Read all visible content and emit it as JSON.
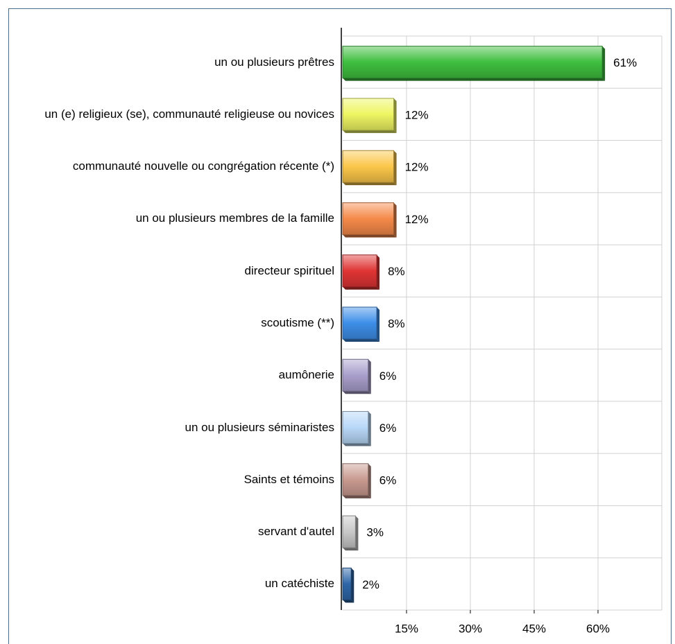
{
  "chart_data": {
    "type": "bar",
    "orientation": "horizontal",
    "categories": [
      "un ou plusieurs prêtres",
      "un (e) religieux (se), communauté religieuse ou novices",
      "communauté nouvelle ou congrégation récente (*)",
      "un ou plusieurs membres de la famille",
      "directeur spirituel",
      "scoutisme (**)",
      "aumônerie",
      "un ou plusieurs séminaristes",
      "Saints et témoins",
      "servant d'autel",
      "un catéchiste"
    ],
    "values": [
      61,
      12,
      12,
      12,
      8,
      8,
      6,
      6,
      6,
      3,
      2
    ],
    "value_labels": [
      "61%",
      "12%",
      "12%",
      "12%",
      "8%",
      "8%",
      "6%",
      "6%",
      "6%",
      "3%",
      "2%"
    ],
    "colors": [
      "#3fbf3f",
      "#eef562",
      "#fbc74a",
      "#f58a4a",
      "#e03434",
      "#3d8ee8",
      "#a99fcc",
      "#b8d8f8",
      "#c99a90",
      "#c8c8c8",
      "#2e66a8"
    ],
    "xlim": [
      0,
      75
    ],
    "xticks": [
      {
        "value": 15,
        "label": "15%"
      },
      {
        "value": 30,
        "label": "30%"
      },
      {
        "value": 45,
        "label": "45%"
      },
      {
        "value": 60,
        "label": "60%"
      }
    ],
    "grid": true
  }
}
